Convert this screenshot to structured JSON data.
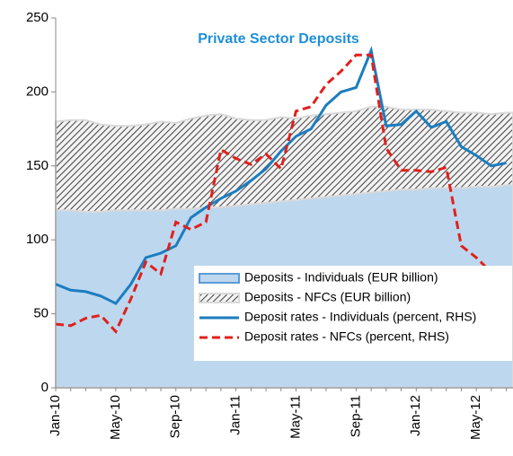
{
  "chart_data": {
    "type": "combo",
    "title": "Private Sector Deposits",
    "categories": [
      "Jan-10",
      null,
      null,
      null,
      "May-10",
      null,
      null,
      null,
      "Sep-10",
      null,
      null,
      null,
      "Jan-11",
      null,
      null,
      null,
      "May-11",
      null,
      null,
      null,
      "Sep-11",
      null,
      null,
      null,
      "Jan-12",
      null,
      null,
      null,
      "May-12",
      null,
      null
    ],
    "series": [
      {
        "name": "Deposits - Individuals (EUR billion)",
        "type": "area",
        "stack": true,
        "color": "#bdd7ee",
        "values": [
          120,
          120,
          119,
          119,
          120,
          120,
          120,
          120,
          121,
          121,
          122,
          122,
          123,
          124,
          125,
          126,
          127,
          128,
          129,
          130,
          131,
          132,
          133,
          134,
          134,
          135,
          135,
          135,
          136,
          136,
          137
        ]
      },
      {
        "name": "Deposits - NFCs (EUR billion)",
        "type": "area",
        "stack": true,
        "hatch": true,
        "color": "#595959",
        "values": [
          60,
          61,
          62,
          59,
          57,
          57,
          58,
          60,
          58,
          61,
          62,
          63,
          59,
          57,
          56,
          57,
          55,
          56,
          56,
          56,
          56,
          58,
          57,
          54,
          54,
          53,
          52,
          51,
          50,
          49,
          49
        ]
      },
      {
        "name": "Deposit rates - Individuals (percent, RHS)",
        "type": "line",
        "dashed": false,
        "color": "#1b7dbf",
        "values": [
          70,
          66,
          65,
          62,
          57,
          70,
          88,
          91,
          96,
          115,
          122,
          128,
          133,
          140,
          148,
          160,
          170,
          175,
          191,
          200,
          203,
          228,
          177,
          178,
          187,
          176,
          180,
          163,
          157,
          150,
          152
        ]
      },
      {
        "name": "Deposit rates - NFCs (percent, RHS)",
        "type": "line",
        "dashed": true,
        "color": "#e0201b",
        "values": [
          43,
          42,
          47,
          49,
          38,
          60,
          85,
          77,
          112,
          107,
          112,
          161,
          155,
          151,
          158,
          148,
          187,
          190,
          205,
          214,
          225,
          225,
          162,
          147,
          147,
          146,
          149,
          96,
          88,
          78,
          64
        ]
      }
    ],
    "ylim": [
      0,
      250
    ],
    "yticks": [
      0,
      50,
      100,
      150,
      200,
      250
    ],
    "legend": "lower right",
    "grid": false
  }
}
